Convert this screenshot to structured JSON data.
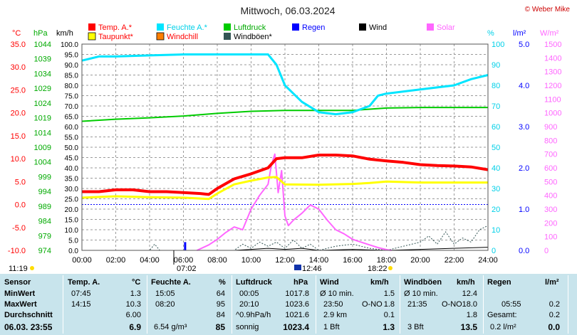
{
  "title": "Mittwoch, 06.03.2024",
  "copyright": "© Weber Mike",
  "colors": {
    "temp": "#ff0000",
    "feuchte": "#00e5ff",
    "luftdruck": "#00cc00",
    "regen": "#0000ff",
    "wind": "#000000",
    "solar": "#ff66ff",
    "taupunkt": "#ffff00",
    "windchill": "#ff7f00",
    "windboeen": "#335555",
    "stats_bg": "#c8e4ec",
    "grid": "#9a9a9a",
    "zero_line": "#0000ff"
  },
  "legend": {
    "row1": [
      "Temp. A.*",
      "Feuchte A.*",
      "Luftdruck",
      "Regen",
      "Wind",
      "Solar"
    ],
    "row2": [
      "Taupunkt*",
      "Windchill",
      "Windböen*"
    ]
  },
  "axis_units": {
    "temp": "°C",
    "pressure": "hPa",
    "wind": "km/h",
    "humidity": "%",
    "rain": "l/m²",
    "solar": "W/m²"
  },
  "sun_times": {
    "sunrise": "07:02",
    "noon": "12:46",
    "sunset": "18:22",
    "clock": "11:19"
  },
  "chart_data": {
    "type": "line",
    "title": "Mittwoch, 06.03.2024",
    "x_range": [
      "00:00",
      "24:00"
    ],
    "x_ticks": [
      "00:00",
      "02:00",
      "04:00",
      "06:00",
      "08:00",
      "10:00",
      "12:00",
      "14:00",
      "16:00",
      "18:00",
      "20:00",
      "22:00",
      "24:00"
    ],
    "axes": {
      "temp_c": {
        "range": [
          -10,
          35
        ],
        "ticks": [
          "35.0",
          "30.0",
          "25.0",
          "20.0",
          "15.0",
          "10.0",
          "5.0",
          "0.0",
          "-5.0",
          "-10.0"
        ]
      },
      "pressure_hpa": {
        "range": [
          974,
          1044
        ],
        "ticks": [
          "1044",
          "1039",
          "1034",
          "1029",
          "1024",
          "1019",
          "1014",
          "1009",
          "1004",
          "999",
          "994",
          "989",
          "984",
          "979",
          "974"
        ]
      },
      "wind_kmh": {
        "range": [
          0,
          100
        ],
        "ticks": [
          "100.0",
          "95.0",
          "90.0",
          "85.0",
          "80.0",
          "75.0",
          "70.0",
          "65.0",
          "60.0",
          "55.0",
          "50.0",
          "45.0",
          "40.0",
          "35.0",
          "30.0",
          "25.0",
          "20.0",
          "15.0",
          "10.0",
          "5.0",
          "0.0"
        ]
      },
      "humidity_pct": {
        "range": [
          0,
          100
        ],
        "ticks": [
          "100",
          "90",
          "80",
          "70",
          "60",
          "50",
          "40",
          "30",
          "20",
          "10",
          "0"
        ]
      },
      "rain_lm2": {
        "range": [
          0,
          5
        ],
        "ticks": [
          "5.0",
          "4.0",
          "3.0",
          "2.0",
          "1.0",
          "0.0"
        ]
      },
      "solar_wm2": {
        "range": [
          0,
          1500
        ],
        "ticks": [
          "1500",
          "1400",
          "1300",
          "1200",
          "1100",
          "1000",
          "900",
          "800",
          "700",
          "600",
          "500",
          "400",
          "300",
          "200",
          "100",
          "0"
        ]
      }
    },
    "series": [
      {
        "name": "Temp. A.*",
        "axis": "temp_c",
        "color": "#ff0000",
        "width": 4,
        "x": [
          0,
          1,
          2,
          3,
          4,
          5,
          6,
          7,
          7.5,
          8,
          9,
          10,
          11,
          11.5,
          12,
          13,
          14,
          15,
          16,
          17,
          18,
          19,
          20,
          21,
          22,
          23,
          24
        ],
        "y": [
          2.8,
          2.8,
          3.2,
          3.2,
          2.8,
          2.8,
          2.6,
          2.4,
          2.2,
          3.5,
          5.6,
          6.7,
          8.0,
          10.0,
          10.2,
          10.2,
          10.8,
          10.8,
          10.6,
          9.9,
          9.5,
          9.2,
          8.7,
          8.5,
          8.4,
          8.2,
          7.6
        ]
      },
      {
        "name": "Taupunkt*",
        "axis": "temp_c",
        "color": "#ffff00",
        "width": 3,
        "x": [
          0,
          2,
          4,
          6,
          7.5,
          8,
          9,
          10,
          11,
          11.5,
          12,
          14,
          16,
          17,
          18,
          20,
          22,
          24
        ],
        "y": [
          1.5,
          1.8,
          1.6,
          1.5,
          1.2,
          2.4,
          4.4,
          5.2,
          5.9,
          6.0,
          4.4,
          4.3,
          4.5,
          4.7,
          5.0,
          4.8,
          4.8,
          4.8
        ]
      },
      {
        "name": "Feuchte A.*",
        "axis": "humidity_pct",
        "color": "#00e5ff",
        "width": 3,
        "x": [
          0,
          1,
          2,
          4,
          6,
          8,
          10,
          11,
          11.5,
          12,
          13,
          14,
          15,
          16,
          17,
          17.5,
          18,
          20,
          22,
          23,
          24
        ],
        "y": [
          92,
          94,
          94,
          94.5,
          95,
          95,
          95,
          95,
          90,
          80,
          72,
          67,
          66,
          67,
          70,
          75,
          76,
          78,
          80,
          83,
          85
        ]
      },
      {
        "name": "Luftdruck",
        "axis": "pressure_hpa",
        "color": "#00cc00",
        "width": 2,
        "x": [
          0,
          2,
          4,
          6,
          8,
          10,
          12,
          14,
          16,
          18,
          20,
          22,
          24
        ],
        "y": [
          1017.8,
          1018.5,
          1019.0,
          1019.6,
          1020.5,
          1021.2,
          1021.5,
          1021.5,
          1021.5,
          1022.3,
          1022.5,
          1022.5,
          1022.5
        ]
      },
      {
        "name": "Solar",
        "axis": "solar_wm2",
        "color": "#ff66ff",
        "width": 2,
        "x": [
          6.8,
          7.5,
          8,
          8.5,
          9,
          9.5,
          10,
          10.5,
          11,
          11.2,
          11.4,
          11.6,
          11.8,
          12,
          12.2,
          12.5,
          13,
          13.5,
          14,
          14.5,
          15,
          15.5,
          16,
          16.5,
          17,
          17.5,
          18,
          18.3
        ],
        "y": [
          0,
          40,
          80,
          130,
          170,
          150,
          300,
          400,
          480,
          620,
          700,
          420,
          580,
          250,
          180,
          220,
          270,
          330,
          300,
          220,
          150,
          120,
          80,
          60,
          40,
          20,
          5,
          0
        ]
      },
      {
        "name": "Windböen*",
        "axis": "wind_kmh",
        "color": "#335555",
        "width": 1,
        "x": [
          0,
          4,
          4.3,
          4.6,
          6,
          9,
          9.5,
          10,
          10.5,
          11,
          11.5,
          12,
          12.5,
          13,
          13.5,
          14,
          15,
          16,
          17,
          18,
          19,
          20,
          20.5,
          21,
          21.5,
          22,
          22.5,
          23,
          23.5,
          24
        ],
        "y": [
          0,
          0,
          3,
          0,
          0,
          0,
          3,
          1,
          4,
          2,
          4,
          1,
          5,
          1,
          3,
          0,
          2,
          3,
          1,
          0,
          2,
          4,
          7,
          3,
          9,
          3,
          6,
          4,
          10,
          12
        ]
      },
      {
        "name": "Wind",
        "axis": "wind_kmh",
        "color": "#000000",
        "width": 1,
        "x": [
          0,
          9,
          10,
          11,
          12,
          13,
          14,
          16,
          18,
          20,
          22,
          24
        ],
        "y": [
          0,
          0,
          0.5,
          1,
          0.5,
          1,
          0,
          0.5,
          0,
          0.5,
          1,
          1.5
        ]
      }
    ],
    "rain_markers": [
      {
        "x": 6.1,
        "y": 0.2
      }
    ],
    "freeze_line": 0
  },
  "stats": {
    "sensor": {
      "header": "Sensor",
      "labels": [
        "MinWert",
        "MaxWert",
        "Durchschnitt"
      ],
      "timestamp": "06.03. 23:55"
    },
    "temp": {
      "header": "Temp. A.",
      "unit": "°C",
      "min_time": "07:45",
      "min_val": "1.3",
      "max_time": "14:15",
      "max_val": "10.3",
      "avg_val": "6.00",
      "current": "6.9"
    },
    "feuchte": {
      "header": "Feuchte A.",
      "unit": "%",
      "min_time": "15:05",
      "min_val": "64",
      "max_time": "08:20",
      "max_val": "95",
      "avg_val": "84",
      "current_extra": "6.54 g/m³",
      "current": "85"
    },
    "luftdruck": {
      "header": "Luftdruck",
      "unit": "hPa",
      "min_time": "00:05",
      "min_val": "1017.8",
      "max_time": "20:10",
      "max_val": "1023.6",
      "avg_label": "^0.9hPa/h",
      "avg_val": "1021.6",
      "current_label": "sonnig",
      "current": "1023.4"
    },
    "wind": {
      "header": "Wind",
      "unit": "km/h",
      "r1_label": "Ø 10 min.",
      "r1_val": "1.5",
      "r2_time": "23:50",
      "r2_dir": "O-NO",
      "r2_val": "1.8",
      "r3_label": "2.9 km",
      "r3_val": "0.1",
      "current_label": "1 Bft",
      "current": "1.3"
    },
    "windboeen": {
      "header": "Windböen",
      "unit": "km/h",
      "r1_label": "Ø 10 min.",
      "r1_val": "12.4",
      "r2_time": "21:35",
      "r2_dir": "O-NO",
      "r2_val": "18.0",
      "r3_val": "1.8",
      "current_label": "3 Bft",
      "current": "13.5"
    },
    "regen": {
      "header": "Regen",
      "unit": "l/m²",
      "r2_time": "05:55",
      "r2_val": "0.2",
      "r3_label": "Gesamt:",
      "r3_val": "0.2",
      "current_label": "0.2 l/m²",
      "current": "0.0"
    }
  }
}
